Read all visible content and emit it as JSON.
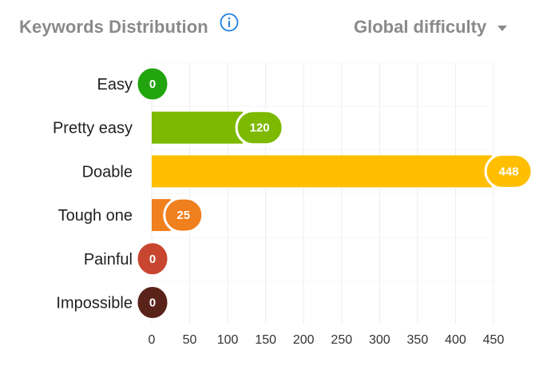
{
  "header": {
    "title": "Keywords Distribution",
    "info_icon": "info-circle-icon",
    "dropdown_label": "Global difficulty",
    "dropdown_icon": "chevron-down-icon"
  },
  "colors": {
    "title_text": "#8a8a8a",
    "info_icon": "#1e7fe0",
    "gridline": "#ececec",
    "axis_text": "#333333"
  },
  "chart_data": {
    "type": "bar",
    "orientation": "horizontal",
    "categories": [
      "Easy",
      "Pretty easy",
      "Doable",
      "Tough one",
      "Painful",
      "Impossible"
    ],
    "values": [
      0,
      120,
      448,
      25,
      0,
      0
    ],
    "colors": [
      "#22a40f",
      "#7db900",
      "#ffbf00",
      "#f07f1d",
      "#c84630",
      "#5a2319"
    ],
    "xlim": [
      0,
      450
    ],
    "xticks": [
      0,
      50,
      100,
      150,
      200,
      250,
      300,
      350,
      400,
      450
    ],
    "grid": true,
    "title": "",
    "xlabel": "",
    "ylabel": ""
  }
}
